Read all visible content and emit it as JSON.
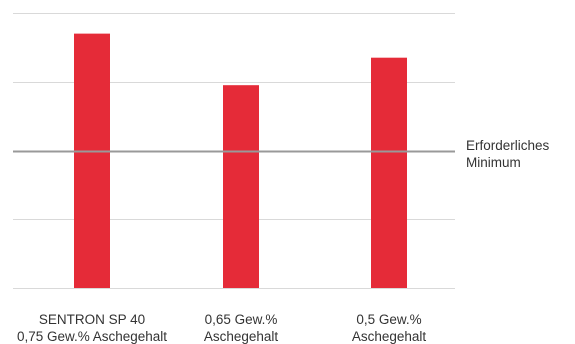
{
  "chart_data": {
    "type": "bar",
    "categories": [
      [
        "SENTRON SP 40",
        "0,75 Gew.% Aschegehalt"
      ],
      [
        "0,65 Gew.%",
        "Aschegehalt"
      ],
      [
        "0,5 Gew.%",
        "Aschegehalt"
      ]
    ],
    "values": [
      3.7,
      2.95,
      3.35
    ],
    "ylim": [
      0,
      4.2
    ],
    "gridlines": [
      0,
      1,
      2,
      3,
      4
    ],
    "grid": true,
    "reference_line": {
      "value": 2,
      "label": [
        "Erforderliches",
        "Minimum"
      ]
    },
    "title": "",
    "xlabel": "",
    "ylabel": "",
    "colors": {
      "bar": "#e52b38",
      "grid": "#d9d9d9",
      "reference": "#999999"
    }
  }
}
